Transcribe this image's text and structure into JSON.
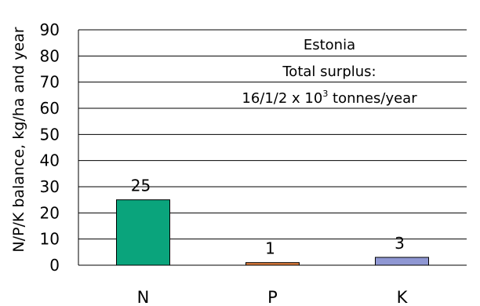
{
  "chart_data": {
    "type": "bar",
    "title": "",
    "xlabel": "",
    "ylabel": "N/P/K balance, kg/ha and year",
    "ylim": [
      0,
      90
    ],
    "yticks": [
      0,
      10,
      20,
      30,
      40,
      50,
      60,
      70,
      80,
      90
    ],
    "categories": [
      "N",
      "P",
      "K"
    ],
    "values": [
      25,
      1,
      3
    ],
    "data_labels": [
      "25",
      "1",
      "3"
    ],
    "colors": [
      "#0aa47c",
      "#dd7a3a",
      "#8f97d3"
    ],
    "grid": true,
    "legend": "none",
    "annotation": {
      "line1": "Estonia",
      "line2": "Total surplus:",
      "line3_base": "16/1/2 x 10",
      "line3_sup": "3",
      "line3_tail": " tonnes/year"
    }
  }
}
